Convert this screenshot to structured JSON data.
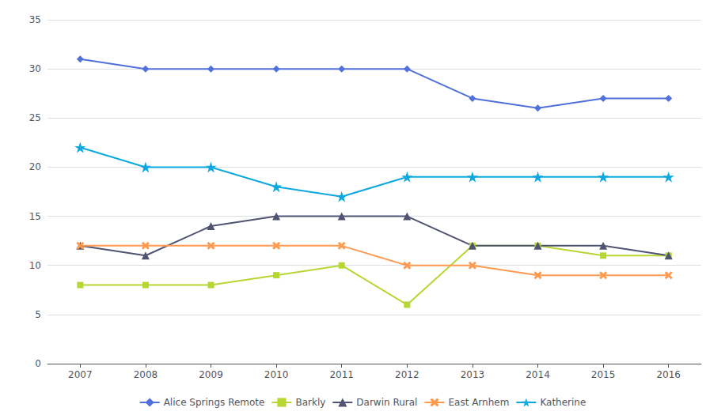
{
  "chart_data": {
    "type": "line",
    "categories": [
      "2007",
      "2008",
      "2009",
      "2010",
      "2011",
      "2012",
      "2013",
      "2014",
      "2015",
      "2016"
    ],
    "series": [
      {
        "name": "Alice Springs Remote",
        "marker": "diamond",
        "values": [
          31,
          30,
          30,
          30,
          30,
          30,
          27,
          26,
          27,
          27
        ]
      },
      {
        "name": "Barkly",
        "marker": "square",
        "values": [
          8,
          8,
          8,
          9,
          10,
          6,
          12,
          12,
          11,
          11
        ]
      },
      {
        "name": "Darwin Rural",
        "marker": "triangle",
        "values": [
          12,
          11,
          14,
          15,
          15,
          15,
          12,
          12,
          12,
          11
        ]
      },
      {
        "name": "East Arnhem",
        "marker": "x",
        "values": [
          12,
          12,
          12,
          12,
          12,
          10,
          10,
          9,
          9,
          9
        ]
      },
      {
        "name": "Katherine",
        "marker": "star",
        "values": [
          22,
          20,
          20,
          18,
          17,
          19,
          19,
          19,
          19,
          19
        ]
      }
    ],
    "ylim": [
      0,
      35
    ],
    "yticks": [
      0,
      5,
      10,
      15,
      20,
      25,
      30,
      35
    ],
    "grid": true,
    "legend": "bottom"
  }
}
